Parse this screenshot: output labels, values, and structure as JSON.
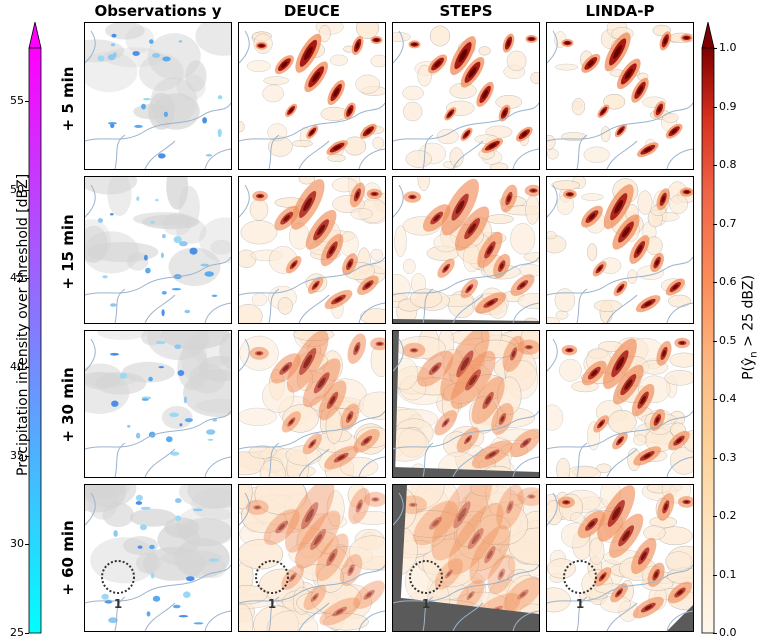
{
  "columns": [
    "Observations y",
    "DEUCE",
    "STEPS",
    "LINDA-P"
  ],
  "rows": [
    "+ 5 min",
    "+ 15 min",
    "+ 30 min",
    "+ 60 min"
  ],
  "annotation_label": "1",
  "left_colorbar": {
    "label": "Precipitation intensity over threshold [dBZ]",
    "ticks": [
      "25",
      "30",
      "35",
      "40",
      "45",
      "50",
      "55"
    ],
    "range": [
      25,
      58
    ],
    "color_low": "#00ffff",
    "color_high": "#ff00ff",
    "extend": "max"
  },
  "right_colorbar": {
    "label": "P(ŷ",
    "label_sub": "n",
    "label_rest": " > 25 dBZ)",
    "ticks": [
      "0.0",
      "0.1",
      "0.2",
      "0.3",
      "0.4",
      "0.5",
      "0.6",
      "0.7",
      "0.8",
      "0.9",
      "1.0"
    ],
    "range": [
      0,
      1
    ],
    "colormap": "OrRd",
    "extend": "max"
  },
  "colors": {
    "coastline": "#9ab3cc",
    "mask": "#5a5a5a",
    "clouds": "#d4d4d4",
    "prob_low": "#fdebd7",
    "prob_mid": "#f08a55",
    "prob_high": "#990000",
    "prob_max": "#5e0000"
  },
  "chart_data": {
    "type": "heatmap",
    "panels": "4 rows (lead times) x 4 columns (observations and three nowcasting methods)",
    "colorbars": [
      "Precipitation intensity over threshold [dBZ]",
      "P(ŷn > 25 dBZ)"
    ]
  }
}
